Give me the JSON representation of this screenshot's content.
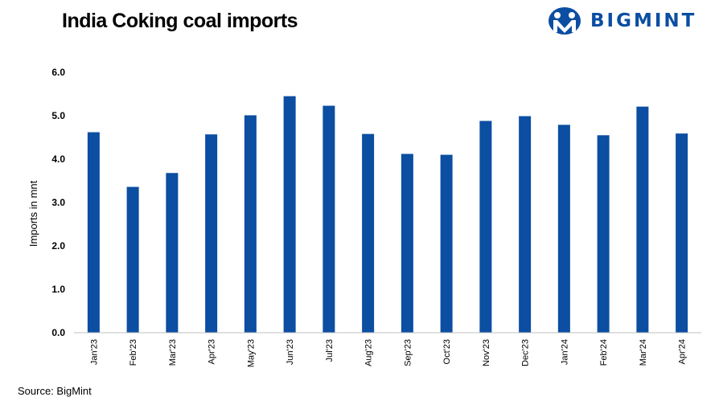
{
  "header": {
    "title": "India Coking coal imports",
    "brand": "BIGMINT"
  },
  "footer": {
    "source": "Source: BigMint"
  },
  "colors": {
    "bar": "#0b4ea2",
    "axis": "#bfbfbf",
    "brand": "#0b4ea2"
  },
  "chart_data": {
    "type": "bar",
    "title": "India Coking coal imports",
    "xlabel": "",
    "ylabel": "Imports in mnt",
    "ylim": [
      0,
      6
    ],
    "yticks": [
      "0.0",
      "1.0",
      "2.0",
      "3.0",
      "4.0",
      "5.0",
      "6.0"
    ],
    "grid": false,
    "categories": [
      "Jan'23",
      "Feb'23",
      "Mar'23",
      "Apr'23",
      "May'23",
      "Jun'23",
      "Jul'23",
      "Aug'23",
      "Sep'23",
      "Oct'23",
      "Nov'23",
      "Dec'23",
      "Jan'24",
      "Feb'24",
      "Mar'24",
      "Apr'24"
    ],
    "values": [
      4.62,
      3.36,
      3.68,
      4.57,
      5.01,
      5.45,
      5.23,
      4.58,
      4.12,
      4.1,
      4.88,
      4.99,
      4.79,
      4.55,
      5.21,
      4.59
    ]
  }
}
